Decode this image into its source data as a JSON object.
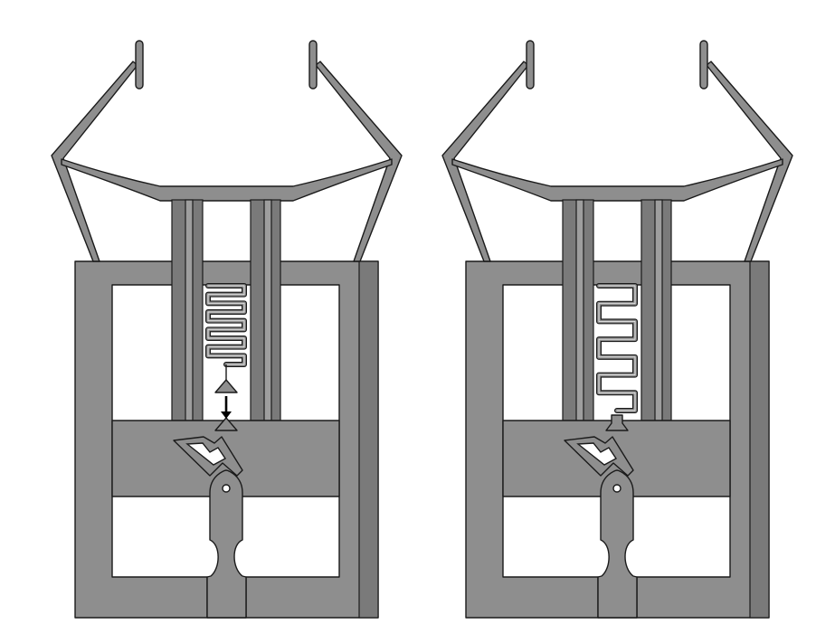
{
  "figure": {
    "panels": [
      {
        "id": "left",
        "state": "spring-compressed",
        "arrow_shown": true,
        "spring_folds": 9
      },
      {
        "id": "right",
        "state": "spring-engaged",
        "arrow_shown": false,
        "spring_folds": 7
      }
    ],
    "colors": {
      "material": "#8e8e8e",
      "material_dark": "#7a7a7a",
      "material_light": "#9e9e9e",
      "outline": "#1a1a1a",
      "background": "#ffffff"
    }
  }
}
